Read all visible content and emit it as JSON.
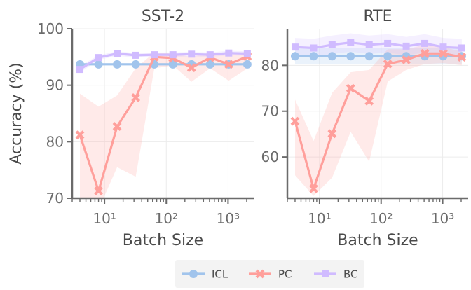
{
  "figure": {
    "ylabel": "Accuracy (%)",
    "legend": {
      "placement": "bottom-center",
      "entries": [
        "ICL",
        "PC",
        "BC"
      ]
    }
  },
  "chart_data": [
    {
      "type": "line",
      "title": "SST-2",
      "xlabel": "Batch Size",
      "ylabel": "Accuracy (%)",
      "x_scale": "log",
      "xlim": [
        3,
        2600
      ],
      "ylim": [
        70,
        100
      ],
      "yticks": [
        70,
        80,
        90,
        100
      ],
      "xticks": [
        10,
        100,
        1000
      ],
      "xtick_labels": [
        "10¹",
        "10²",
        "10³"
      ],
      "grid": true,
      "x": [
        4,
        8,
        16,
        32,
        64,
        128,
        256,
        512,
        1024,
        2048
      ],
      "series": [
        {
          "name": "ICL",
          "color": "#a1c4ec",
          "marker": "circle",
          "values": [
            93.7,
            93.7,
            93.7,
            93.7,
            93.7,
            93.7,
            93.7,
            93.7,
            93.7,
            93.7
          ],
          "lower": [
            93.5,
            93.5,
            93.5,
            93.5,
            93.5,
            93.5,
            93.5,
            93.5,
            93.5,
            93.5
          ],
          "upper": [
            93.9,
            93.9,
            93.9,
            93.9,
            93.9,
            93.9,
            93.9,
            93.9,
            93.9,
            93.9
          ]
        },
        {
          "name": "PC",
          "color": "#ff9f9b",
          "marker": "x",
          "values": [
            81.2,
            71.3,
            82.7,
            87.8,
            95.0,
            94.8,
            93.1,
            94.9,
            93.7,
            95.1
          ],
          "lower": [
            70.0,
            68.0,
            75.5,
            73.8,
            93.0,
            93.5,
            90.6,
            93.0,
            90.8,
            93.0
          ],
          "upper": [
            88.5,
            86.2,
            88.2,
            93.0,
            95.8,
            95.6,
            95.0,
            95.8,
            95.3,
            96.0
          ]
        },
        {
          "name": "BC",
          "color": "#d0bbff",
          "marker": "square",
          "values": [
            92.8,
            94.9,
            95.6,
            95.3,
            95.4,
            95.4,
            95.5,
            95.4,
            95.7,
            95.6
          ],
          "lower": [
            92.2,
            94.5,
            95.2,
            94.9,
            95.0,
            95.0,
            95.1,
            95.0,
            95.3,
            95.2
          ],
          "upper": [
            93.4,
            95.3,
            96.0,
            95.7,
            95.8,
            95.8,
            95.9,
            95.8,
            96.1,
            96.0
          ]
        }
      ]
    },
    {
      "type": "line",
      "title": "RTE",
      "xlabel": "Batch Size",
      "ylabel": "",
      "x_scale": "log",
      "xlim": [
        3,
        2600
      ],
      "ylim": [
        51,
        88
      ],
      "yticks": [
        60,
        70,
        80
      ],
      "xticks": [
        10,
        100,
        1000
      ],
      "xtick_labels": [
        "10¹",
        "10²",
        "10³"
      ],
      "grid": true,
      "x": [
        4,
        8,
        16,
        32,
        64,
        128,
        256,
        512,
        1024,
        2048
      ],
      "series": [
        {
          "name": "ICL",
          "color": "#a1c4ec",
          "marker": "circle",
          "values": [
            82.0,
            82.0,
            82.0,
            82.0,
            82.0,
            82.0,
            82.0,
            82.0,
            82.0,
            82.0
          ],
          "lower": [
            80.2,
            80.2,
            80.2,
            80.2,
            80.2,
            80.2,
            80.2,
            80.2,
            80.2,
            80.2
          ],
          "upper": [
            83.8,
            83.8,
            83.8,
            83.8,
            83.8,
            83.8,
            83.8,
            83.8,
            83.8,
            83.8
          ]
        },
        {
          "name": "PC",
          "color": "#ff9f9b",
          "marker": "x",
          "values": [
            67.8,
            53.1,
            65.1,
            75.0,
            72.2,
            80.3,
            81.2,
            82.6,
            82.6,
            81.8
          ],
          "lower": [
            56.0,
            51.5,
            55.5,
            65.5,
            59.0,
            76.5,
            79.0,
            80.3,
            80.5,
            80.0
          ],
          "upper": [
            72.5,
            63.5,
            74.0,
            78.5,
            79.0,
            83.5,
            83.5,
            84.5,
            84.0,
            83.0
          ]
        },
        {
          "name": "BC",
          "color": "#d0bbff",
          "marker": "square",
          "values": [
            84.0,
            83.8,
            84.5,
            85.0,
            84.5,
            84.8,
            84.2,
            84.8,
            84.0,
            83.8
          ],
          "lower": [
            82.0,
            81.8,
            82.5,
            83.0,
            82.5,
            82.8,
            82.2,
            82.8,
            82.0,
            81.8
          ],
          "upper": [
            86.0,
            85.8,
            86.5,
            87.0,
            86.5,
            86.8,
            86.2,
            86.8,
            86.0,
            85.8
          ]
        }
      ]
    }
  ]
}
